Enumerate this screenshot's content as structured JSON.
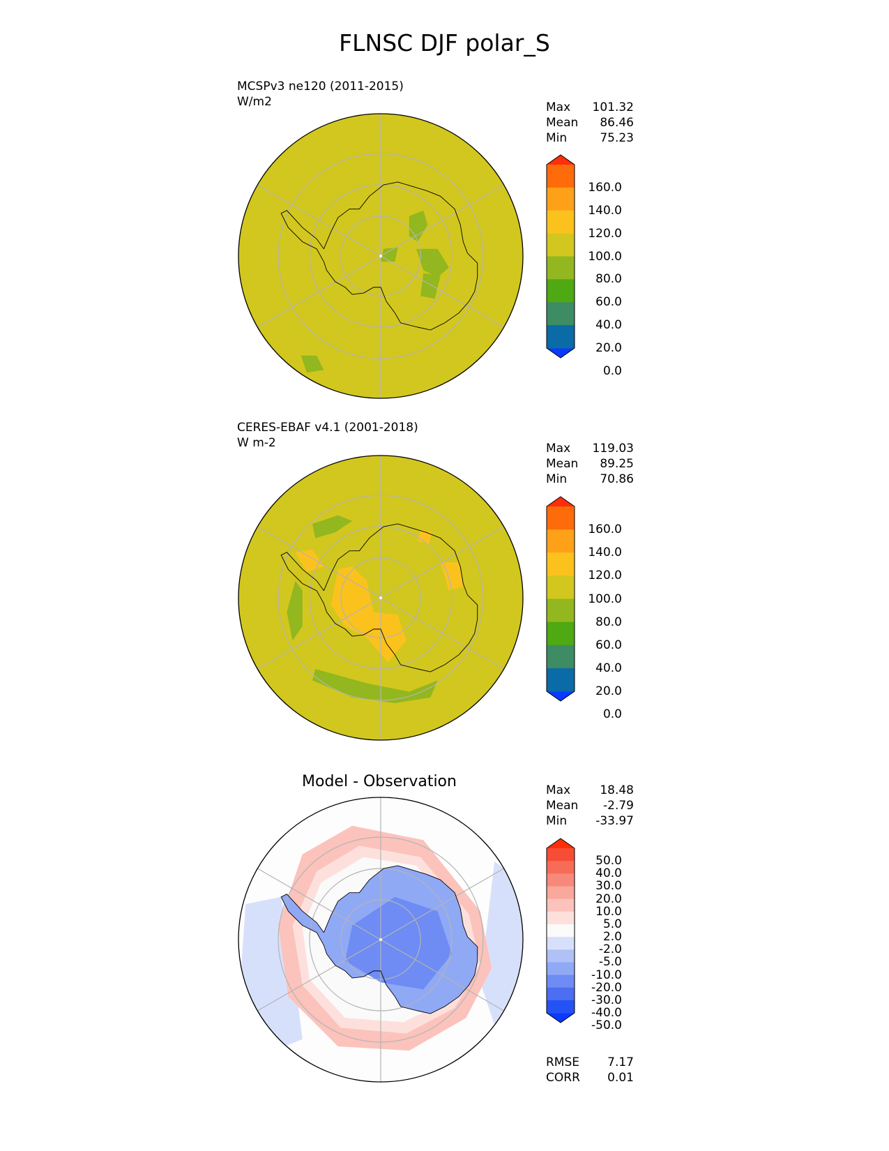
{
  "page": {
    "title": "FLNSC DJF polar_S"
  },
  "panels": [
    {
      "id": "test",
      "title_line1": "MCSPv3 ne120 (2011-2015)",
      "title_line2": "W/m2",
      "stats": [
        {
          "label": "Max",
          "value": "101.32"
        },
        {
          "label": "Mean",
          "value": "86.46"
        },
        {
          "label": "Min",
          "value": "75.23"
        }
      ],
      "background_color": "#d2c71e",
      "colorbar": {
        "colors": [
          "#0b39ff",
          "#0a6ba6",
          "#3d8c64",
          "#4ea913",
          "#92b71f",
          "#d2c71e",
          "#fbc21e",
          "#fea119",
          "#fe6b0a",
          "#fe2e0b"
        ],
        "labels": [
          "160.0",
          "140.0",
          "120.0",
          "100.0",
          "80.0",
          "60.0",
          "40.0",
          "20.0",
          "0.0"
        ]
      }
    },
    {
      "id": "reference",
      "title_line1": "CERES-EBAF v4.1 (2001-2018)",
      "title_line2": "W m-2",
      "stats": [
        {
          "label": "Max",
          "value": "119.03"
        },
        {
          "label": "Mean",
          "value": "89.25"
        },
        {
          "label": "Min",
          "value": "70.86"
        }
      ],
      "background_color": "#d2c71e",
      "colorbar": {
        "colors": [
          "#0b39ff",
          "#0a6ba6",
          "#3d8c64",
          "#4ea913",
          "#92b71f",
          "#d2c71e",
          "#fbc21e",
          "#fea119",
          "#fe6b0a",
          "#fe2e0b"
        ],
        "labels": [
          "160.0",
          "140.0",
          "120.0",
          "100.0",
          "80.0",
          "60.0",
          "40.0",
          "20.0",
          "0.0"
        ]
      }
    },
    {
      "id": "diff",
      "title_center": "Model - Observation",
      "stats": [
        {
          "label": "Max",
          "value": "18.48"
        },
        {
          "label": "Mean",
          "value": "-2.79"
        },
        {
          "label": "Min",
          "value": "-33.97"
        }
      ],
      "bottom_stats": [
        {
          "label": "RMSE",
          "value": "7.17"
        },
        {
          "label": "CORR",
          "value": "0.01"
        }
      ],
      "background_color": "#fdfdfd",
      "colorbar": {
        "colors": [
          "#0b39ff",
          "#2453f5",
          "#4b6ef2",
          "#6e8cf3",
          "#90a9f5",
          "#b0c1f6",
          "#d7e0fb",
          "#fafafa",
          "#fde0dc",
          "#fbc3bb",
          "#f9a89b",
          "#f8897a",
          "#f76b59",
          "#f74c35",
          "#fe2e0b"
        ],
        "labels": [
          "50.0",
          "40.0",
          "30.0",
          "20.0",
          "10.0",
          "5.0",
          "2.0",
          "-2.0",
          "-5.0",
          "-10.0",
          "-20.0",
          "-30.0",
          "-40.0",
          "-50.0"
        ]
      }
    }
  ],
  "chart_data": [
    {
      "type": "heatmap",
      "projection": "south polar stereographic",
      "title": "MCSPv3 ne120 (2011-2015)",
      "units": "W/m2",
      "variable": "FLNSC",
      "season": "DJF",
      "stats": {
        "max": 101.32,
        "mean": 86.46,
        "min": 75.23
      },
      "contour_levels": [
        0,
        20,
        40,
        60,
        80,
        100,
        120,
        140,
        160
      ],
      "dominant_range": [
        80,
        100
      ],
      "regions": [
        {
          "name": "most of domain",
          "range": [
            80,
            100
          ]
        },
        {
          "name": "patches over East Antarctica interior",
          "range": [
            60,
            80
          ]
        },
        {
          "name": "small patch near 60S, Atlantic sector",
          "range": [
            60,
            80
          ]
        }
      ]
    },
    {
      "type": "heatmap",
      "projection": "south polar stereographic",
      "title": "CERES-EBAF v4.1 (2001-2018)",
      "units": "W m-2",
      "variable": "FLNSC",
      "season": "DJF",
      "stats": {
        "max": 119.03,
        "mean": 89.25,
        "min": 70.86
      },
      "contour_levels": [
        0,
        20,
        40,
        60,
        80,
        100,
        120,
        140,
        160
      ],
      "dominant_range": [
        80,
        100
      ],
      "regions": [
        {
          "name": "most of domain",
          "range": [
            80,
            100
          ]
        },
        {
          "name": "Ross / Weddell ice shelves and Antarctic Peninsula",
          "range": [
            100,
            120
          ]
        },
        {
          "name": "sea-ice band near Antarctic coast",
          "range": [
            60,
            80
          ]
        }
      ]
    },
    {
      "type": "heatmap",
      "projection": "south polar stereographic",
      "title": "Model - Observation",
      "variable": "FLNSC",
      "season": "DJF",
      "stats": {
        "max": 18.48,
        "mean": -2.79,
        "min": -33.97,
        "rmse": 7.17,
        "corr": 0.01
      },
      "contour_levels": [
        -50,
        -40,
        -30,
        -20,
        -10,
        -5,
        -2,
        2,
        5,
        10,
        20,
        30,
        40,
        50
      ],
      "regions": [
        {
          "name": "Antarctic continent interior",
          "range": [
            -20,
            -5
          ]
        },
        {
          "name": "ring around continent (sea-ice zone)",
          "range": [
            2,
            20
          ]
        },
        {
          "name": "open ocean",
          "range": [
            -5,
            2
          ]
        }
      ]
    }
  ]
}
